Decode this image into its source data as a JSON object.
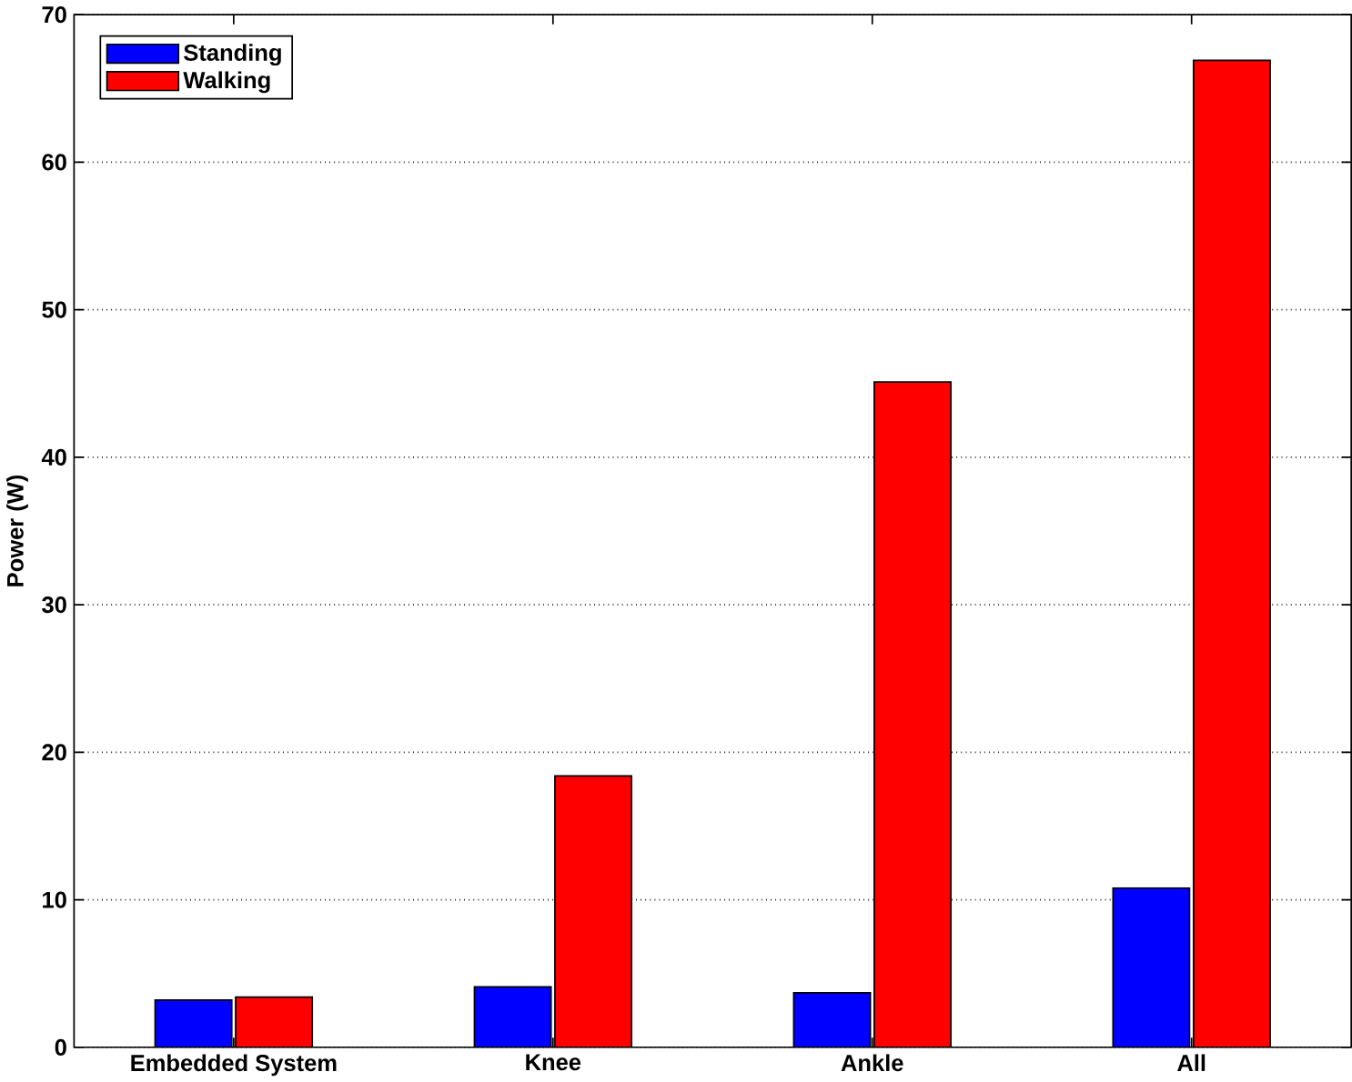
{
  "chart_data": {
    "type": "bar",
    "ylabel": "Power (W)",
    "categories": [
      "Embedded System",
      "Knee",
      "Ankle",
      "All"
    ],
    "series": [
      {
        "name": "Standing",
        "color": "#0000ff",
        "values": [
          3.2,
          4.1,
          3.7,
          10.8
        ]
      },
      {
        "name": "Walking",
        "color": "#ff0000",
        "values": [
          3.4,
          18.4,
          45.1,
          66.9
        ]
      }
    ],
    "ylim": [
      0,
      70
    ],
    "yticks": [
      0,
      10,
      20,
      30,
      40,
      50,
      60,
      70
    ],
    "grid": "y",
    "legend": "top left"
  }
}
